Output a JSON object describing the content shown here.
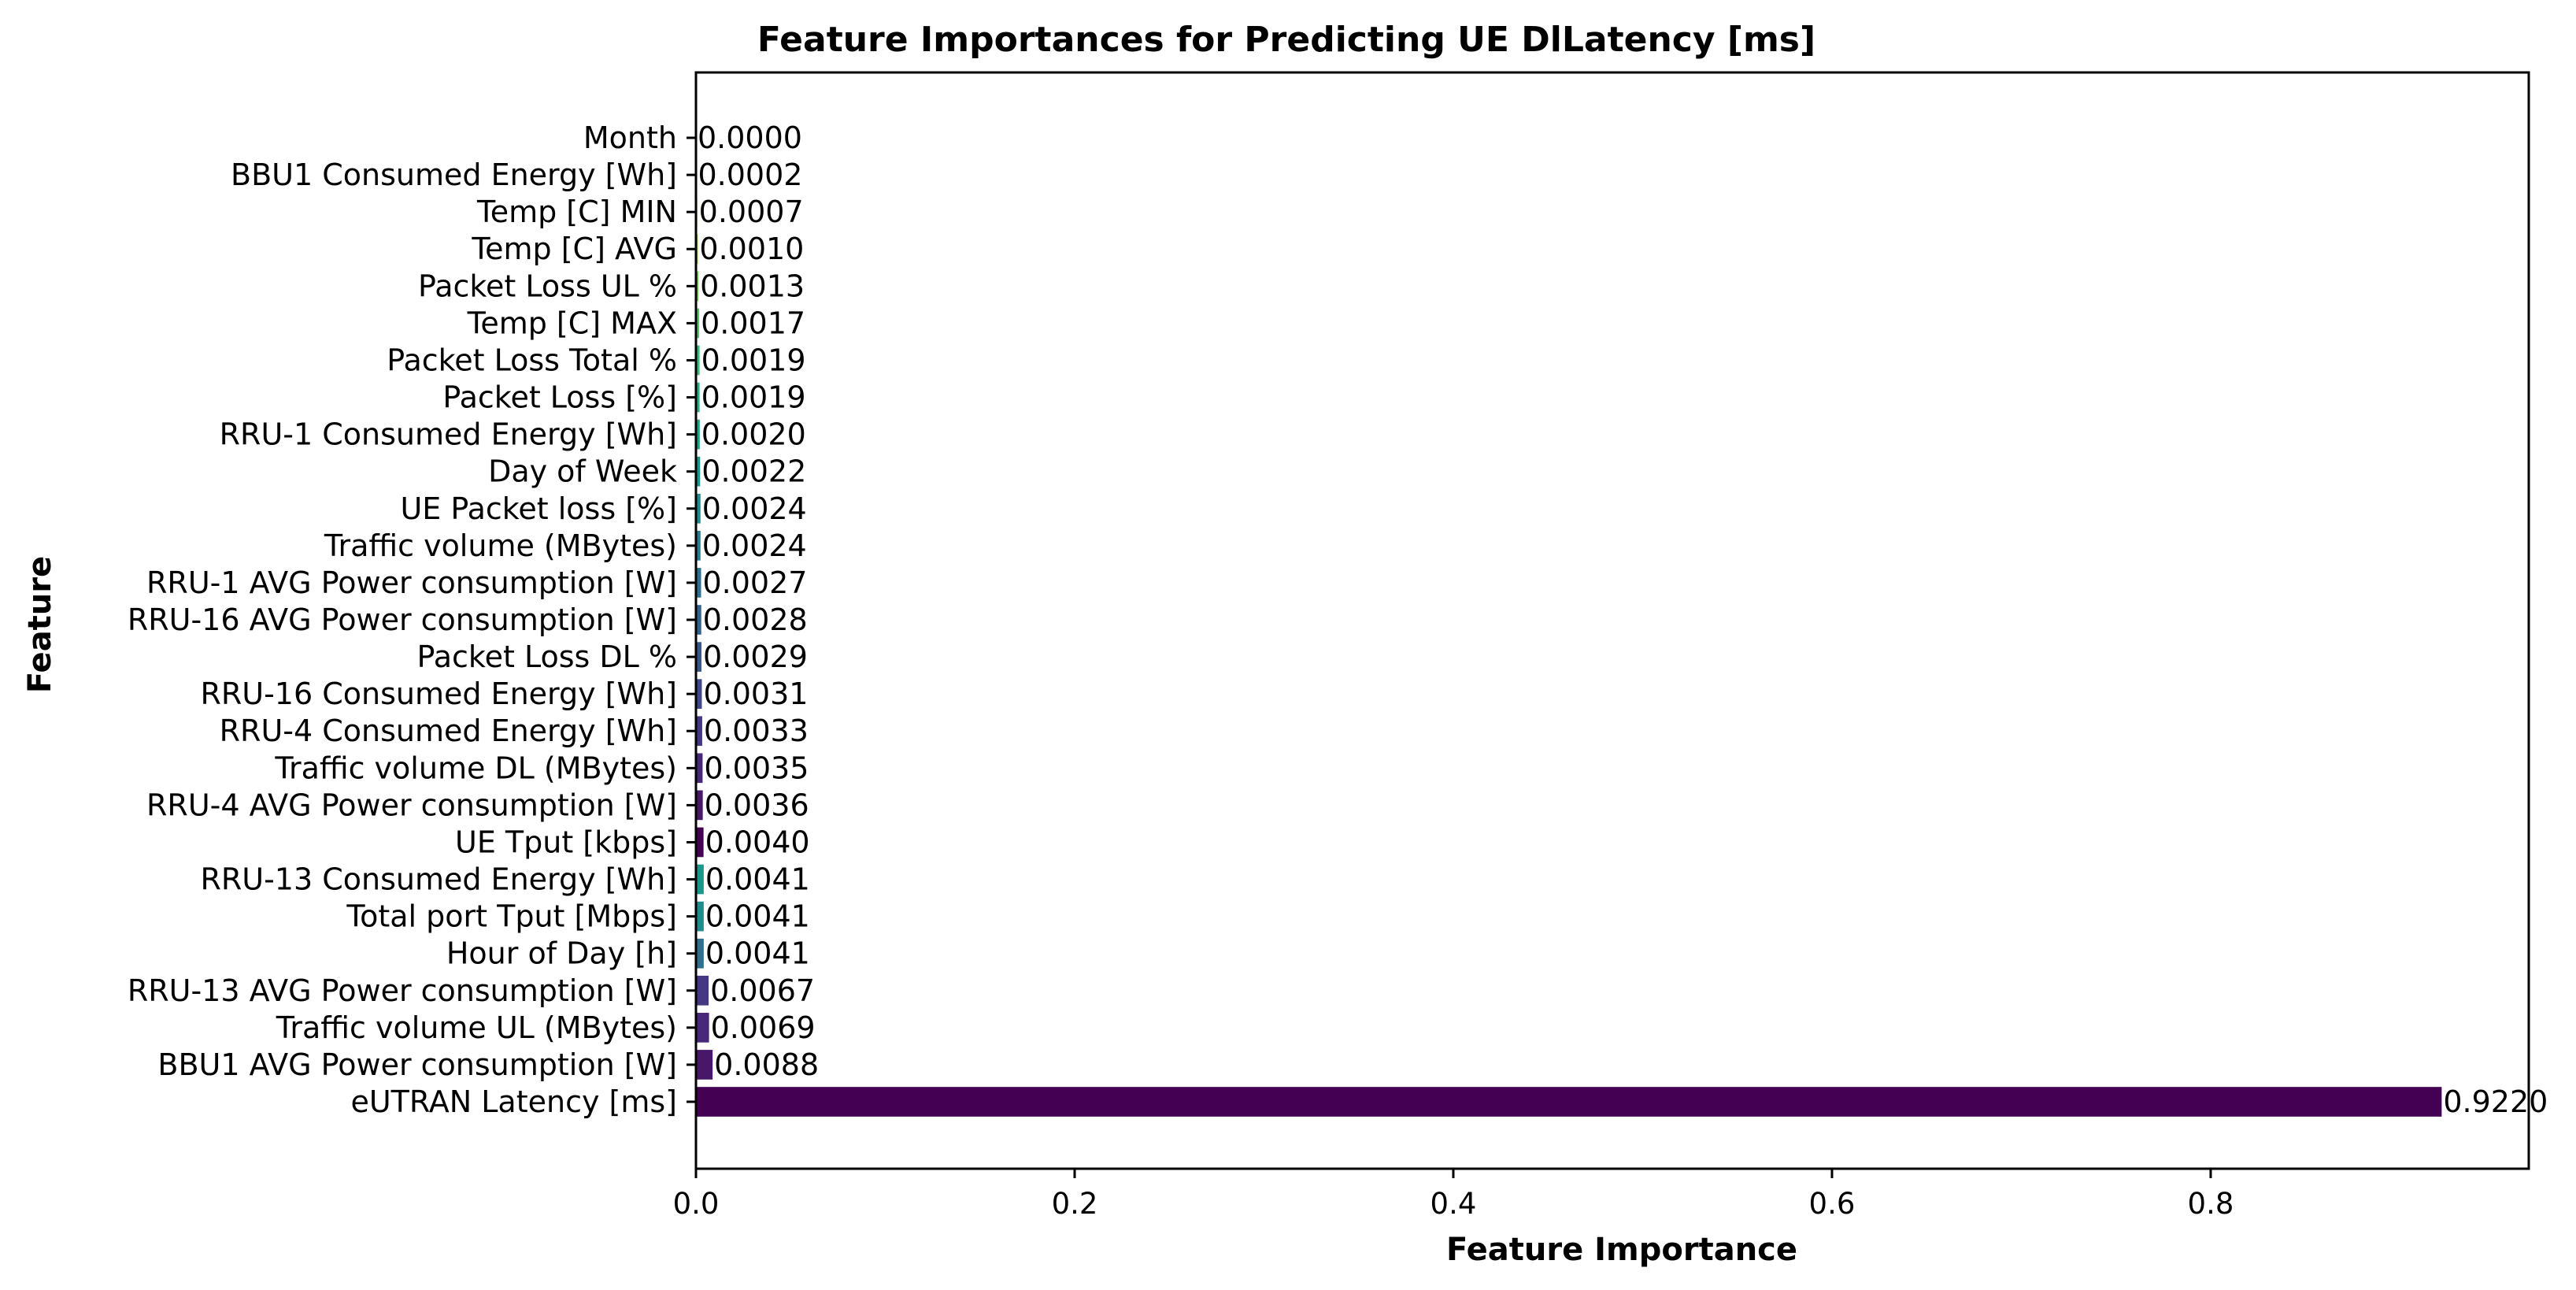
{
  "chart_data": {
    "type": "bar",
    "orientation": "horizontal",
    "title": "Feature Importances for Predicting UE DlLatency [ms]",
    "xlabel": "Feature Importance",
    "ylabel": "Feature",
    "xlim": [
      0,
      0.968
    ],
    "xticks": [
      0.0,
      0.2,
      0.4,
      0.6,
      0.8
    ],
    "xtick_labels": [
      "0.0",
      "0.2",
      "0.4",
      "0.6",
      "0.8"
    ],
    "grid": false,
    "legend": "none",
    "colormap": "viridis",
    "categories": [
      "Month",
      "BBU1 Consumed Energy [Wh]",
      "Temp [C] MIN",
      "Temp [C] AVG",
      "Packet Loss UL %",
      "Temp [C] MAX",
      "Packet Loss Total %",
      "Packet Loss [%]",
      "RRU-1 Consumed Energy [Wh]",
      "Day of Week",
      "UE Packet loss [%]",
      "Traffic volume  (MBytes)",
      "RRU-1 AVG Power consumption [W]",
      "RRU-16 AVG Power consumption [W]",
      "Packet Loss DL %",
      "RRU-16 Consumed Energy [Wh]",
      "RRU-4 Consumed Energy [Wh]",
      "Traffic volume DL  (MBytes)",
      "RRU-4 AVG Power consumption [W]",
      "UE Tput [kbps]",
      "RRU-13   Consumed Energy [Wh]",
      "Total port Tput [Mbps]",
      "Hour of Day [h]",
      "RRU-13 AVG Power consumption [W]",
      "Traffic volume UL  (MBytes)",
      "BBU1 AVG Power consumption [W]",
      "eUTRAN Latency [ms]"
    ],
    "values": [
      0.0,
      0.0002,
      0.0007,
      0.001,
      0.0013,
      0.0017,
      0.0019,
      0.0019,
      0.002,
      0.0022,
      0.0024,
      0.0024,
      0.0027,
      0.0028,
      0.0029,
      0.0031,
      0.0033,
      0.0035,
      0.0036,
      0.004,
      0.0041,
      0.0041,
      0.0041,
      0.0067,
      0.0069,
      0.0088,
      0.922
    ],
    "value_labels": [
      "0.0000",
      "0.0002",
      "0.0007",
      "0.0010",
      "0.0013",
      "0.0017",
      "0.0019",
      "0.0019",
      "0.0020",
      "0.0022",
      "0.0024",
      "0.0024",
      "0.0027",
      "0.0028",
      "0.0029",
      "0.0031",
      "0.0033",
      "0.0035",
      "0.0036",
      "0.0040",
      "0.0041",
      "0.0041",
      "0.0041",
      "0.0067",
      "0.0069",
      "0.0088",
      "0.9220"
    ],
    "colors": [
      "#fde725",
      "#dfe318",
      "#bade28",
      "#95d840",
      "#75d054",
      "#56c667",
      "#3dbc74",
      "#29af7f",
      "#20a386",
      "#1f968b",
      "#238a8d",
      "#287d8e",
      "#2d718e",
      "#33638d",
      "#39568c",
      "#3f4889",
      "#453781",
      "#482878",
      "#481769",
      "#440154",
      "#1f968b",
      "#238a8d",
      "#2d718e",
      "#453781",
      "#482878",
      "#481769",
      "#440154"
    ]
  }
}
